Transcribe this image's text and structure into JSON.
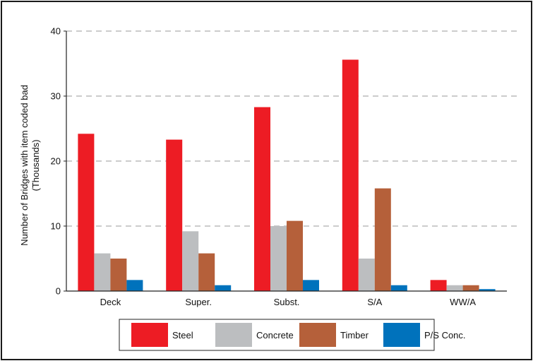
{
  "chart_data": {
    "type": "bar",
    "title": "",
    "ylabel": [
      "Number of Bridges with item coded bad",
      "(Thousands)"
    ],
    "xlabel": "",
    "ylim": [
      0,
      40
    ],
    "yticks": [
      0,
      10,
      20,
      30,
      40
    ],
    "grid": "horizontal-dashed",
    "legend_position": "bottom",
    "categories": [
      "Deck",
      "Super.",
      "Subst.",
      "S/A",
      "WW/A"
    ],
    "series": [
      {
        "name": "Steel",
        "color": "#ed1c24",
        "values": [
          24.2,
          23.3,
          28.3,
          35.6,
          1.7
        ]
      },
      {
        "name": "Concrete",
        "color": "#bcbec0",
        "values": [
          5.8,
          9.2,
          10.0,
          5.0,
          0.9
        ]
      },
      {
        "name": "Timber",
        "color": "#b5603a",
        "values": [
          5.0,
          5.8,
          10.8,
          15.8,
          0.9
        ]
      },
      {
        "name": "P/S Conc.",
        "color": "#0072bc",
        "values": [
          1.7,
          0.9,
          1.7,
          0.9,
          0.3
        ]
      }
    ]
  }
}
